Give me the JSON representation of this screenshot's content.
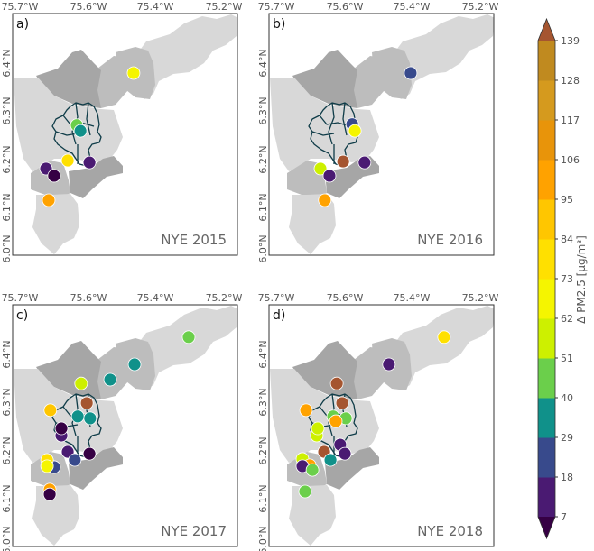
{
  "axes": {
    "x_ticks": [
      "75.7°W",
      "75.6°W",
      "75.4°W",
      "75.2°W"
    ],
    "y_ticks": [
      "6.4°N",
      "6.3°N",
      "6.2°N",
      "6.1°N",
      "6.0°N"
    ]
  },
  "panels": [
    {
      "label": "a)",
      "title": "NYE 2015",
      "points": [
        {
          "lon": -75.465,
          "lat": 6.383,
          "value": 70
        },
        {
          "lon": -75.635,
          "lat": 6.274,
          "value": 45
        },
        {
          "lon": -75.624,
          "lat": 6.262,
          "value": 35
        },
        {
          "lon": -75.662,
          "lat": 6.2,
          "value": 75
        },
        {
          "lon": -75.597,
          "lat": 6.196,
          "value": 12
        },
        {
          "lon": -75.727,
          "lat": 6.183,
          "value": 12
        },
        {
          "lon": -75.703,
          "lat": 6.168,
          "value": 5
        },
        {
          "lon": -75.719,
          "lat": 6.117,
          "value": 100
        }
      ]
    },
    {
      "label": "b)",
      "title": "NYE 2016",
      "points": [
        {
          "lon": -75.403,
          "lat": 6.383,
          "value": 22
        },
        {
          "lon": -75.578,
          "lat": 6.276,
          "value": 22
        },
        {
          "lon": -75.57,
          "lat": 6.262,
          "value": 70
        },
        {
          "lon": -75.605,
          "lat": 6.198,
          "value": 145
        },
        {
          "lon": -75.541,
          "lat": 6.196,
          "value": 12
        },
        {
          "lon": -75.673,
          "lat": 6.183,
          "value": 58
        },
        {
          "lon": -75.646,
          "lat": 6.168,
          "value": 12
        },
        {
          "lon": -75.66,
          "lat": 6.117,
          "value": 100
        }
      ]
    },
    {
      "label": "c)",
      "title": "NYE 2017",
      "points": [
        {
          "lon": -75.3,
          "lat": 6.44,
          "value": 45
        },
        {
          "lon": -75.462,
          "lat": 6.383,
          "value": 35
        },
        {
          "lon": -75.535,
          "lat": 6.351,
          "value": 35
        },
        {
          "lon": -75.622,
          "lat": 6.343,
          "value": 58
        },
        {
          "lon": -75.605,
          "lat": 6.302,
          "value": 145
        },
        {
          "lon": -75.714,
          "lat": 6.287,
          "value": 86
        },
        {
          "lon": -75.632,
          "lat": 6.274,
          "value": 35
        },
        {
          "lon": -75.595,
          "lat": 6.27,
          "value": 35
        },
        {
          "lon": -75.681,
          "lat": 6.234,
          "value": 12
        },
        {
          "lon": -75.681,
          "lat": 6.249,
          "value": 5
        },
        {
          "lon": -75.662,
          "lat": 6.2,
          "value": 12
        },
        {
          "lon": -75.597,
          "lat": 6.196,
          "value": 5
        },
        {
          "lon": -75.641,
          "lat": 6.183,
          "value": 22
        },
        {
          "lon": -75.703,
          "lat": 6.168,
          "value": 22
        },
        {
          "lon": -75.724,
          "lat": 6.183,
          "value": 80
        },
        {
          "lon": -75.724,
          "lat": 6.17,
          "value": 70
        },
        {
          "lon": -75.716,
          "lat": 6.121,
          "value": 100
        },
        {
          "lon": -75.716,
          "lat": 6.111,
          "value": 5
        }
      ]
    },
    {
      "label": "d)",
      "title": "NYE 2018",
      "points": [
        {
          "lon": -75.303,
          "lat": 6.44,
          "value": 78
        },
        {
          "lon": -75.468,
          "lat": 6.383,
          "value": 12
        },
        {
          "lon": -75.624,
          "lat": 6.343,
          "value": 145
        },
        {
          "lon": -75.608,
          "lat": 6.302,
          "value": 145
        },
        {
          "lon": -75.716,
          "lat": 6.287,
          "value": 100
        },
        {
          "lon": -75.635,
          "lat": 6.274,
          "value": 45
        },
        {
          "lon": -75.597,
          "lat": 6.27,
          "value": 45
        },
        {
          "lon": -75.627,
          "lat": 6.264,
          "value": 100
        },
        {
          "lon": -75.684,
          "lat": 6.234,
          "value": 58
        },
        {
          "lon": -75.681,
          "lat": 6.249,
          "value": 58
        },
        {
          "lon": -75.614,
          "lat": 6.215,
          "value": 12
        },
        {
          "lon": -75.662,
          "lat": 6.2,
          "value": 145
        },
        {
          "lon": -75.6,
          "lat": 6.196,
          "value": 12
        },
        {
          "lon": -75.643,
          "lat": 6.183,
          "value": 35
        },
        {
          "lon": -75.727,
          "lat": 6.185,
          "value": 58
        },
        {
          "lon": -75.705,
          "lat": 6.172,
          "value": 100
        },
        {
          "lon": -75.727,
          "lat": 6.17,
          "value": 12
        },
        {
          "lon": -75.697,
          "lat": 6.162,
          "value": 45
        },
        {
          "lon": -75.719,
          "lat": 6.117,
          "value": 45
        }
      ]
    }
  ],
  "colorbar": {
    "label": "Δ PM2.5 [μg/m³]",
    "ticks": [
      "7",
      "18",
      "29",
      "40",
      "51",
      "62",
      "73",
      "84",
      "95",
      "106",
      "117",
      "128",
      "139"
    ],
    "bounds": [
      7,
      18,
      29,
      40,
      51,
      62,
      73,
      84,
      95,
      106,
      117,
      128,
      139
    ],
    "colors": [
      "#4a1a72",
      "#384a8c",
      "#10918a",
      "#6bcf4b",
      "#cdf000",
      "#f5f500",
      "#ffe000",
      "#ffc600",
      "#ffa200",
      "#e8940a",
      "#d59a1e",
      "#c08a1f"
    ],
    "under_color": "#360044",
    "over_color": "#a55530"
  }
}
